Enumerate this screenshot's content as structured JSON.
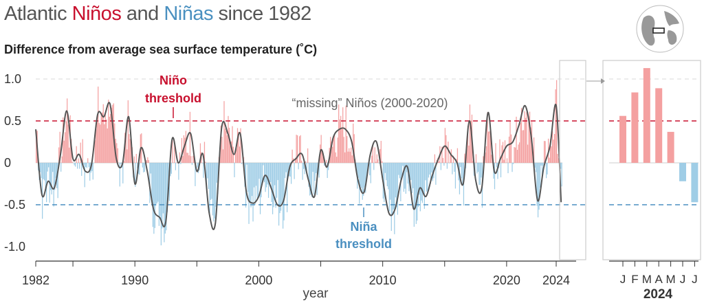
{
  "title": {
    "part1": "Atlantic ",
    "nino": "Niños",
    "part2": " and ",
    "nina": "Niñas",
    "part3": " since 1982"
  },
  "subtitle": "Difference from average sea surface temperature (˚C)",
  "annotations": {
    "nino_threshold_line1": "Niño",
    "nino_threshold_line2": "threshold",
    "nina_threshold_line1": "Niña",
    "nina_threshold_line2": "threshold",
    "missing_ninos": "“missing” Niños (2000-2020)"
  },
  "colors": {
    "warm": "#f4a0a0",
    "cold": "#9fcde6",
    "nino_line": "#c8102e",
    "nina_line": "#4a8fc0",
    "smooth_line": "#555555"
  },
  "chart_data": [
    {
      "type": "bar",
      "title": "",
      "xlabel": "year",
      "ylabel": "Difference from average sea surface temperature (˚C)",
      "xlim": [
        1982,
        2024.5
      ],
      "ylim": [
        -1.15,
        1.15
      ],
      "x_ticks": [
        "1982",
        "1990",
        "2000",
        "2010",
        "2020",
        "2024"
      ],
      "x_tick_values": [
        1982,
        1990,
        2000,
        2010,
        2020,
        2024
      ],
      "y_ticks": [
        "1.0",
        "0.5",
        "0",
        "-0.5",
        "-1.0"
      ],
      "y_tick_values": [
        1.0,
        0.5,
        0,
        -0.5,
        -1.0
      ],
      "thresholds": {
        "nino": 0.5,
        "nina": -0.5
      },
      "smoothed_series": {
        "x": [
          1982.0,
          1982.5,
          1983.0,
          1983.5,
          1984.0,
          1984.5,
          1985.0,
          1985.5,
          1986.0,
          1986.5,
          1987.0,
          1987.5,
          1988.0,
          1988.5,
          1989.0,
          1989.5,
          1990.0,
          1990.5,
          1991.0,
          1991.5,
          1992.0,
          1992.5,
          1993.0,
          1993.5,
          1994.0,
          1994.5,
          1995.0,
          1995.5,
          1996.0,
          1996.5,
          1997.0,
          1997.5,
          1998.0,
          1998.5,
          1999.0,
          1999.5,
          2000.0,
          2000.5,
          2001.0,
          2001.5,
          2002.0,
          2002.5,
          2003.0,
          2003.5,
          2004.0,
          2004.5,
          2005.0,
          2005.5,
          2006.0,
          2006.5,
          2007.0,
          2007.5,
          2008.0,
          2008.5,
          2009.0,
          2009.5,
          2010.0,
          2010.5,
          2011.0,
          2011.5,
          2012.0,
          2012.5,
          2013.0,
          2013.5,
          2014.0,
          2014.5,
          2015.0,
          2015.5,
          2016.0,
          2016.5,
          2017.0,
          2017.5,
          2018.0,
          2018.5,
          2019.0,
          2019.5,
          2020.0,
          2020.5,
          2021.0,
          2021.5,
          2022.0,
          2022.5,
          2023.0,
          2023.5,
          2024.0,
          2024.4
        ],
        "y": [
          0.4,
          -0.38,
          -0.22,
          -0.3,
          0.1,
          0.62,
          0.05,
          0.1,
          -0.1,
          -0.02,
          0.58,
          0.55,
          0.7,
          0.05,
          -0.01,
          0.55,
          -0.25,
          0.18,
          -0.1,
          -0.55,
          -0.65,
          -0.7,
          0.28,
          0.0,
          0.2,
          0.35,
          -0.1,
          0.1,
          -0.6,
          -0.72,
          0.42,
          0.35,
          0.1,
          0.35,
          -0.35,
          -0.48,
          -0.4,
          -0.15,
          -0.3,
          -0.5,
          -0.45,
          -0.05,
          0.05,
          0.1,
          -0.2,
          -0.4,
          0.15,
          -0.05,
          0.3,
          0.4,
          0.4,
          0.25,
          -0.2,
          -0.35,
          0.1,
          0.25,
          -0.2,
          -0.6,
          -0.55,
          -0.2,
          -0.05,
          -0.55,
          -0.3,
          -0.4,
          -0.15,
          0.05,
          0.2,
          0.1,
          0.0,
          -0.25,
          0.5,
          -0.2,
          -0.3,
          0.6,
          -0.1,
          0.05,
          0.2,
          0.25,
          0.45,
          0.68,
          0.3,
          -0.45,
          -0.05,
          0.2,
          0.68,
          -0.47
        ]
      }
    },
    {
      "type": "bar",
      "title": "2024",
      "categories": [
        "J",
        "F",
        "M",
        "A",
        "M",
        "J",
        "J"
      ],
      "values": [
        0.56,
        0.84,
        1.13,
        0.89,
        0.37,
        -0.22,
        -0.47
      ],
      "ylim": [
        -1.15,
        1.15
      ]
    }
  ]
}
